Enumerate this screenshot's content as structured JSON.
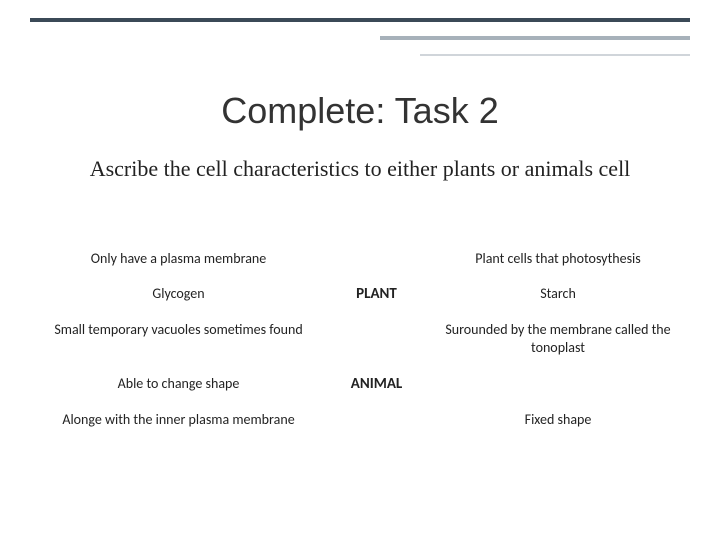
{
  "header": {
    "title": "Complete: Task 2",
    "subtitle": "Ascribe the cell characteristics to either plants or animals cell"
  },
  "styling": {
    "title_fontsize": 36,
    "title_font": "Trebuchet MS",
    "title_color": "#333333",
    "subtitle_fontsize": 22,
    "subtitle_font": "Georgia",
    "body_fontsize": 14,
    "body_font": "Calibri",
    "line1_color": "#3b4a57",
    "line2_color": "#a7b1ba",
    "line3_color": "#d0d5da",
    "background_color": "#ffffff"
  },
  "table": {
    "rows": [
      {
        "left": "Only have a plasma membrane",
        "mid": "",
        "right": "Plant cells that photosythesis"
      },
      {
        "left": "Glycogen",
        "mid": "PLANT",
        "right": "Starch"
      },
      {
        "left": "Small temporary vacuoles sometimes found",
        "mid": "",
        "right": "Surounded by the membrane called the tonoplast"
      },
      {
        "left": "Able to change shape",
        "mid": "ANIMAL",
        "right": ""
      },
      {
        "left": "Alonge with the inner plasma membrane",
        "mid": "",
        "right": "Fixed shape"
      }
    ]
  }
}
